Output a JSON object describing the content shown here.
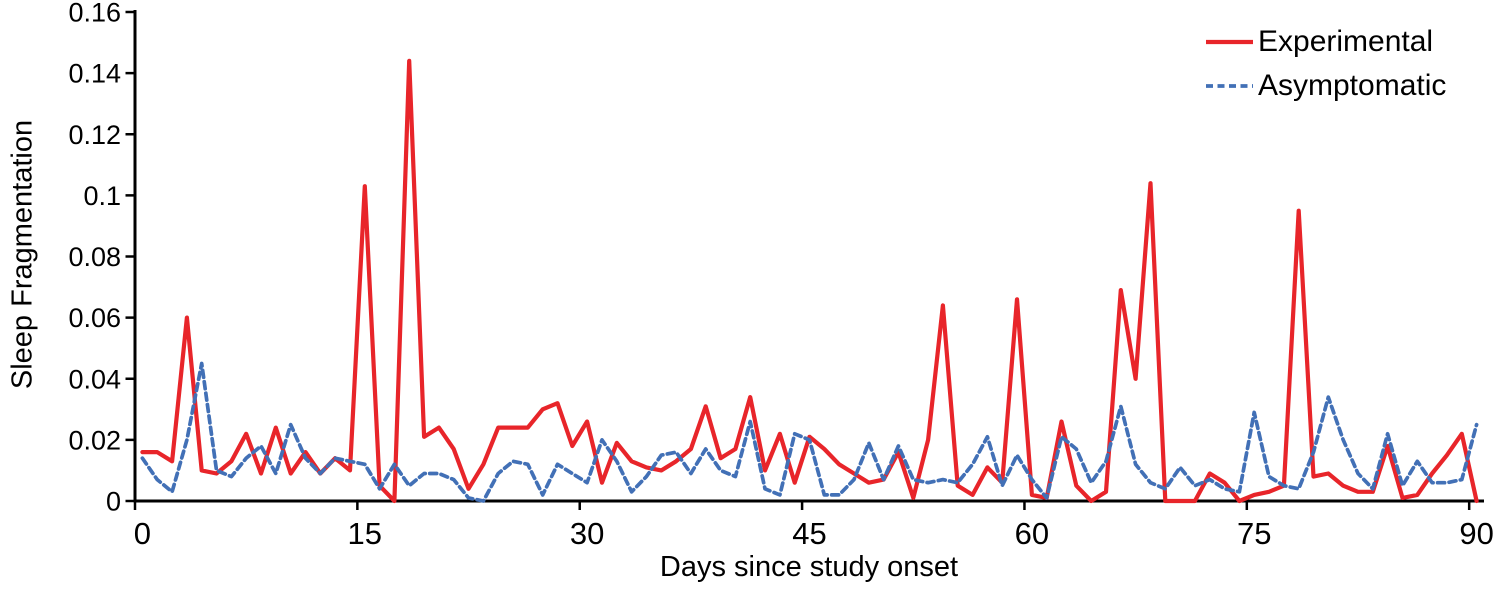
{
  "figure": {
    "background": "#ffffff",
    "axis_color": "#000000",
    "text_color": "#000000"
  },
  "chart_data": {
    "type": "line",
    "title": "",
    "xlabel": "Days since study onset",
    "ylabel": "Sleep Fragmentation",
    "xlim": [
      0,
      90
    ],
    "ylim": [
      0,
      0.16
    ],
    "grid": false,
    "legend_position": "top-right",
    "x_ticks": [
      0,
      15,
      30,
      45,
      60,
      75,
      90
    ],
    "x_tick_labels": [
      "0",
      "15",
      "30",
      "45",
      "60",
      "75",
      "90"
    ],
    "y_ticks": [
      0,
      0.02,
      0.04,
      0.06,
      0.08,
      0.1,
      0.12,
      0.14,
      0.16
    ],
    "y_tick_labels": [
      "0",
      "0.02",
      "0.04",
      "0.06",
      "0.08",
      "0.1",
      "0.12",
      "0.14",
      "0.16"
    ],
    "x": [
      0,
      1,
      2,
      3,
      4,
      5,
      6,
      7,
      8,
      9,
      10,
      11,
      12,
      13,
      14,
      15,
      16,
      17,
      18,
      19,
      20,
      21,
      22,
      23,
      24,
      25,
      26,
      27,
      28,
      29,
      30,
      31,
      32,
      33,
      34,
      35,
      36,
      37,
      38,
      39,
      40,
      41,
      42,
      43,
      44,
      45,
      46,
      47,
      48,
      49,
      50,
      51,
      52,
      53,
      54,
      55,
      56,
      57,
      58,
      59,
      60,
      61,
      62,
      63,
      64,
      65,
      66,
      67,
      68,
      69,
      70,
      71,
      72,
      73,
      74,
      75,
      76,
      77,
      78,
      79,
      80,
      81,
      82,
      83,
      84,
      85,
      86,
      87,
      88,
      89,
      90
    ],
    "series": [
      {
        "name": "Experimental",
        "color": "#e8252a",
        "style": "solid",
        "line_width": 4.2,
        "values": [
          0.016,
          0.016,
          0.013,
          0.06,
          0.01,
          0.009,
          0.013,
          0.022,
          0.009,
          0.024,
          0.009,
          0.016,
          0.009,
          0.014,
          0.01,
          0.103,
          0.005,
          0.0,
          0.144,
          0.021,
          0.024,
          0.017,
          0.004,
          0.012,
          0.024,
          0.024,
          0.024,
          0.03,
          0.032,
          0.018,
          0.026,
          0.006,
          0.019,
          0.013,
          0.011,
          0.01,
          0.013,
          0.017,
          0.031,
          0.014,
          0.017,
          0.034,
          0.01,
          0.022,
          0.006,
          0.021,
          0.017,
          0.012,
          0.009,
          0.006,
          0.007,
          0.016,
          0.001,
          0.02,
          0.064,
          0.005,
          0.002,
          0.011,
          0.006,
          0.066,
          0.002,
          0.001,
          0.026,
          0.005,
          0.0,
          0.003,
          0.069,
          0.04,
          0.104,
          0.0,
          0.0,
          0.0,
          0.009,
          0.006,
          0.0,
          0.002,
          0.003,
          0.005,
          0.095,
          0.008,
          0.009,
          0.005,
          0.003,
          0.003,
          0.018,
          0.001,
          0.002,
          0.009,
          0.015,
          0.022,
          0.0
        ]
      },
      {
        "name": "Asymptomatic",
        "color": "#4270b6",
        "style": "dashed",
        "dash": "7 4.5",
        "line_width": 3.7,
        "values": [
          0.014,
          0.007,
          0.003,
          0.02,
          0.045,
          0.01,
          0.008,
          0.014,
          0.018,
          0.009,
          0.025,
          0.014,
          0.009,
          0.014,
          0.013,
          0.012,
          0.004,
          0.012,
          0.005,
          0.009,
          0.009,
          0.007,
          0.001,
          0.0,
          0.009,
          0.013,
          0.012,
          0.002,
          0.012,
          0.009,
          0.006,
          0.02,
          0.013,
          0.003,
          0.008,
          0.015,
          0.016,
          0.009,
          0.017,
          0.01,
          0.008,
          0.026,
          0.004,
          0.002,
          0.022,
          0.02,
          0.002,
          0.002,
          0.007,
          0.019,
          0.007,
          0.018,
          0.007,
          0.006,
          0.007,
          0.006,
          0.012,
          0.021,
          0.005,
          0.015,
          0.007,
          0.001,
          0.021,
          0.017,
          0.006,
          0.013,
          0.031,
          0.012,
          0.006,
          0.004,
          0.011,
          0.005,
          0.007,
          0.004,
          0.003,
          0.029,
          0.008,
          0.005,
          0.004,
          0.016,
          0.034,
          0.02,
          0.009,
          0.004,
          0.022,
          0.005,
          0.013,
          0.006,
          0.006,
          0.007,
          0.025
        ]
      }
    ]
  }
}
